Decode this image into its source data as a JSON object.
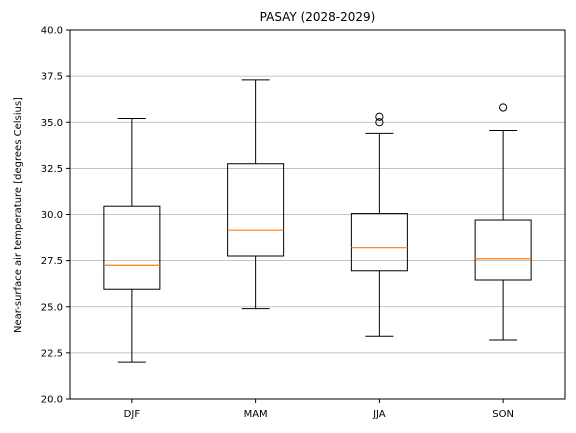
{
  "chart_data": {
    "type": "box",
    "title": "PASAY (2028-2029)",
    "xlabel": "",
    "ylabel": "Near-surface air temperature [degrees Celsius]",
    "ylim": [
      20.0,
      40.0
    ],
    "yticks": [
      "20.0",
      "22.5",
      "25.0",
      "27.5",
      "30.0",
      "32.5",
      "35.0",
      "37.5",
      "40.0"
    ],
    "grid": "y",
    "categories": [
      "DJF",
      "MAM",
      "JJA",
      "SON"
    ],
    "boxes": [
      {
        "category": "DJF",
        "whisker_low": 22.0,
        "q1": 25.95,
        "median": 27.25,
        "q3": 30.45,
        "whisker_high": 35.2,
        "outliers": []
      },
      {
        "category": "MAM",
        "whisker_low": 24.9,
        "q1": 27.75,
        "median": 29.15,
        "q3": 32.75,
        "whisker_high": 37.3,
        "outliers": []
      },
      {
        "category": "JJA",
        "whisker_low": 23.4,
        "q1": 26.95,
        "median": 28.2,
        "q3": 30.05,
        "whisker_high": 34.4,
        "outliers": [
          35.0,
          35.3
        ]
      },
      {
        "category": "SON",
        "whisker_low": 23.2,
        "q1": 26.45,
        "median": 27.6,
        "q3": 29.7,
        "whisker_high": 34.55,
        "outliers": [
          35.8
        ]
      }
    ],
    "colors": {
      "box": "#000000",
      "median": "#ff7f0e",
      "grid": "#b0b0b0"
    }
  }
}
